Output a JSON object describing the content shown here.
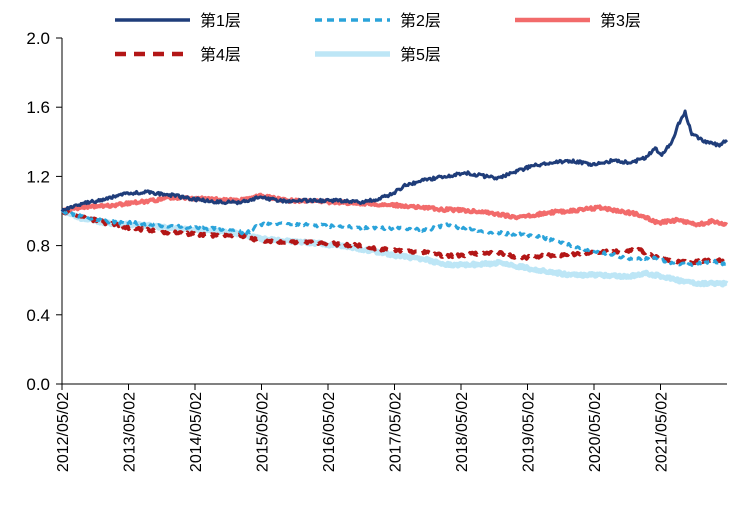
{
  "chart_data": {
    "type": "line",
    "title": "",
    "xlabel": "",
    "ylabel": "",
    "ylim": [
      0.0,
      2.0
    ],
    "yticks": [
      "0.0",
      "0.4",
      "0.8",
      "1.2",
      "1.6",
      "2.0"
    ],
    "xticks": [
      "2012/05/02",
      "2013/05/02",
      "2014/05/02",
      "2015/05/02",
      "2016/05/02",
      "2017/05/02",
      "2018/05/02",
      "2019/05/02",
      "2020/05/02",
      "2021/05/02"
    ],
    "x_range": [
      2012.33,
      2022.33
    ],
    "legend_position": "top",
    "series": [
      {
        "name": "第1层",
        "color": "#1F3D7A",
        "dash": "solid",
        "x": [
          2012.33,
          2012.6,
          2013.0,
          2013.3,
          2013.6,
          2014.0,
          2014.3,
          2014.7,
          2015.0,
          2015.3,
          2015.6,
          2016.0,
          2016.5,
          2016.8,
          2017.1,
          2017.3,
          2017.5,
          2017.8,
          2018.1,
          2018.4,
          2018.7,
          2018.9,
          2019.1,
          2019.4,
          2019.7,
          2020.0,
          2020.3,
          2020.6,
          2020.9,
          2021.1,
          2021.25,
          2021.35,
          2021.5,
          2021.6,
          2021.7,
          2021.8,
          2022.0,
          2022.2,
          2022.33
        ],
        "y": [
          1.0,
          1.04,
          1.07,
          1.1,
          1.11,
          1.09,
          1.07,
          1.05,
          1.05,
          1.08,
          1.06,
          1.06,
          1.06,
          1.05,
          1.07,
          1.1,
          1.15,
          1.18,
          1.2,
          1.22,
          1.2,
          1.19,
          1.22,
          1.26,
          1.28,
          1.29,
          1.27,
          1.29,
          1.28,
          1.31,
          1.36,
          1.33,
          1.4,
          1.5,
          1.57,
          1.45,
          1.4,
          1.38,
          1.41
        ]
      },
      {
        "name": "第2层",
        "color": "#2AA3DA",
        "dash": "dashed",
        "x": [
          2012.33,
          2012.6,
          2013.0,
          2013.5,
          2014.0,
          2014.5,
          2014.9,
          2015.1,
          2015.3,
          2015.6,
          2016.0,
          2016.5,
          2017.0,
          2017.4,
          2017.8,
          2018.1,
          2018.5,
          2019.0,
          2019.4,
          2019.8,
          2020.2,
          2020.6,
          2020.9,
          2021.2,
          2021.5,
          2021.8,
          2022.1,
          2022.33
        ],
        "y": [
          1.0,
          0.97,
          0.94,
          0.93,
          0.91,
          0.9,
          0.89,
          0.87,
          0.92,
          0.93,
          0.92,
          0.91,
          0.9,
          0.9,
          0.89,
          0.92,
          0.89,
          0.87,
          0.86,
          0.82,
          0.78,
          0.75,
          0.72,
          0.73,
          0.7,
          0.69,
          0.71,
          0.69
        ]
      },
      {
        "name": "第3层",
        "color": "#F26B6B",
        "dash": "solid",
        "x": [
          2012.33,
          2012.6,
          2013.0,
          2013.5,
          2014.0,
          2014.5,
          2015.0,
          2015.3,
          2015.7,
          2016.0,
          2016.5,
          2017.0,
          2017.5,
          2018.0,
          2018.5,
          2018.9,
          2019.2,
          2019.6,
          2020.0,
          2020.4,
          2020.7,
          2021.0,
          2021.3,
          2021.6,
          2021.9,
          2022.1,
          2022.33
        ],
        "y": [
          1.0,
          1.02,
          1.03,
          1.05,
          1.08,
          1.07,
          1.06,
          1.09,
          1.06,
          1.06,
          1.05,
          1.04,
          1.03,
          1.01,
          1.0,
          0.98,
          0.96,
          0.99,
          1.0,
          1.02,
          1.0,
          0.98,
          0.93,
          0.95,
          0.92,
          0.94,
          0.92
        ]
      },
      {
        "name": "第4层",
        "color": "#B31616",
        "dash": "dashed",
        "x": [
          2012.33,
          2012.6,
          2013.0,
          2013.4,
          2013.8,
          2014.2,
          2014.6,
          2015.0,
          2015.3,
          2015.7,
          2016.0,
          2016.4,
          2016.8,
          2017.1,
          2017.4,
          2017.8,
          2018.1,
          2018.5,
          2018.9,
          2019.2,
          2019.6,
          2020.0,
          2020.4,
          2020.8,
          2021.0,
          2021.2,
          2021.5,
          2021.8,
          2022.1,
          2022.33
        ],
        "y": [
          1.0,
          0.97,
          0.93,
          0.9,
          0.88,
          0.87,
          0.86,
          0.86,
          0.83,
          0.82,
          0.82,
          0.81,
          0.8,
          0.78,
          0.77,
          0.76,
          0.74,
          0.75,
          0.76,
          0.73,
          0.74,
          0.75,
          0.76,
          0.77,
          0.78,
          0.74,
          0.71,
          0.7,
          0.72,
          0.71
        ]
      },
      {
        "name": "第5层",
        "color": "#BDE6F6",
        "dash": "solid",
        "x": [
          2012.33,
          2012.6,
          2013.0,
          2013.5,
          2014.0,
          2014.5,
          2015.0,
          2015.3,
          2015.7,
          2016.0,
          2016.5,
          2017.0,
          2017.4,
          2017.8,
          2018.1,
          2018.5,
          2018.9,
          2019.2,
          2019.6,
          2020.0,
          2020.4,
          2020.8,
          2021.1,
          2021.4,
          2021.7,
          2022.0,
          2022.33
        ],
        "y": [
          1.0,
          0.96,
          0.93,
          0.92,
          0.9,
          0.89,
          0.87,
          0.84,
          0.83,
          0.82,
          0.8,
          0.77,
          0.74,
          0.72,
          0.69,
          0.69,
          0.7,
          0.68,
          0.65,
          0.63,
          0.63,
          0.62,
          0.64,
          0.62,
          0.59,
          0.58,
          0.58
        ]
      }
    ]
  }
}
